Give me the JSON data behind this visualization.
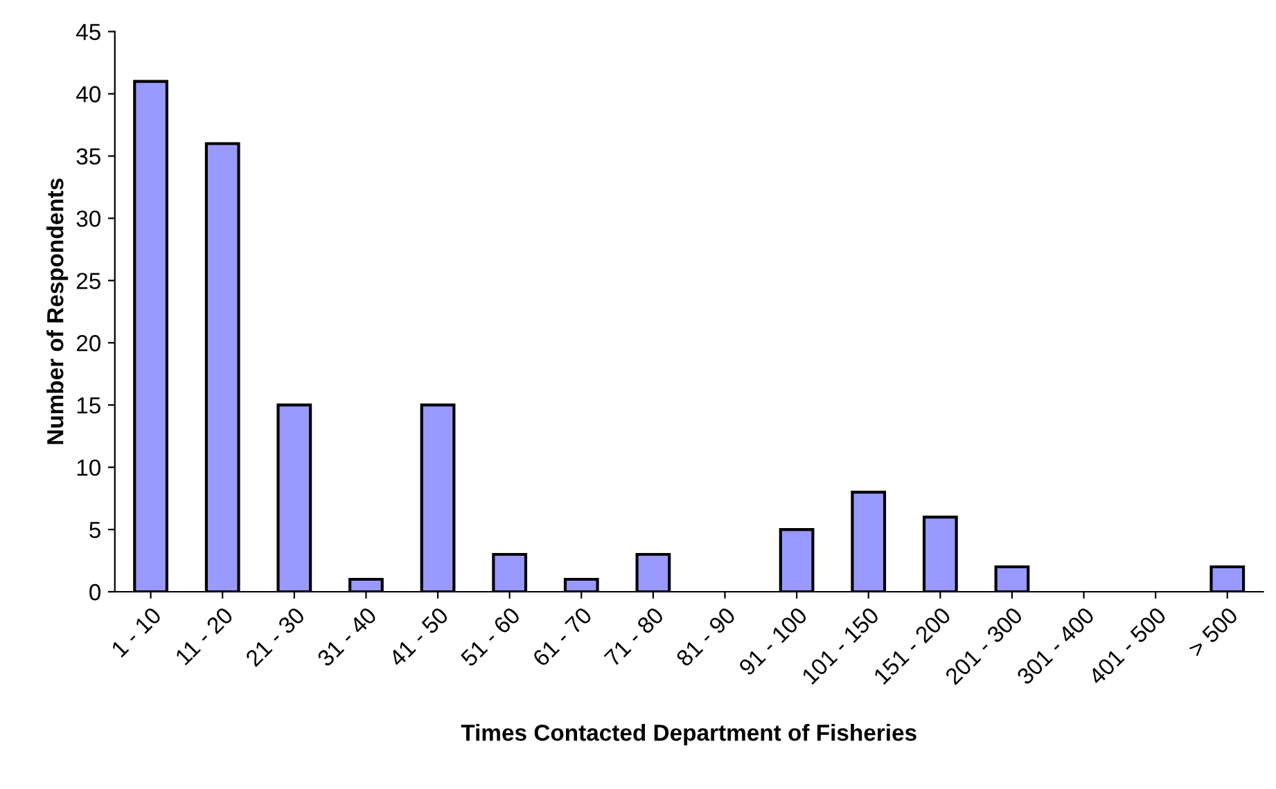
{
  "chart_data": {
    "type": "bar",
    "xlabel": "Times Contacted Department of Fisheries",
    "ylabel": "Number of Respondents",
    "categories": [
      "1 - 10",
      "11 - 20",
      "21 - 30",
      "31 - 40",
      "41 - 50",
      "51 - 60",
      "61 - 70",
      "71 - 80",
      "81 - 90",
      "91 - 100",
      "101 - 150",
      "151 - 200",
      "201 - 300",
      "301 - 400",
      "401 - 500",
      "> 500"
    ],
    "values": [
      41,
      36,
      15,
      1,
      15,
      3,
      1,
      3,
      0,
      5,
      8,
      6,
      2,
      0,
      0,
      2
    ],
    "color": "#9999ff",
    "ylim": [
      0,
      45
    ],
    "yticks": [
      0,
      5,
      10,
      15,
      20,
      25,
      30,
      35,
      40,
      45
    ],
    "grid": false,
    "legend": false
  }
}
